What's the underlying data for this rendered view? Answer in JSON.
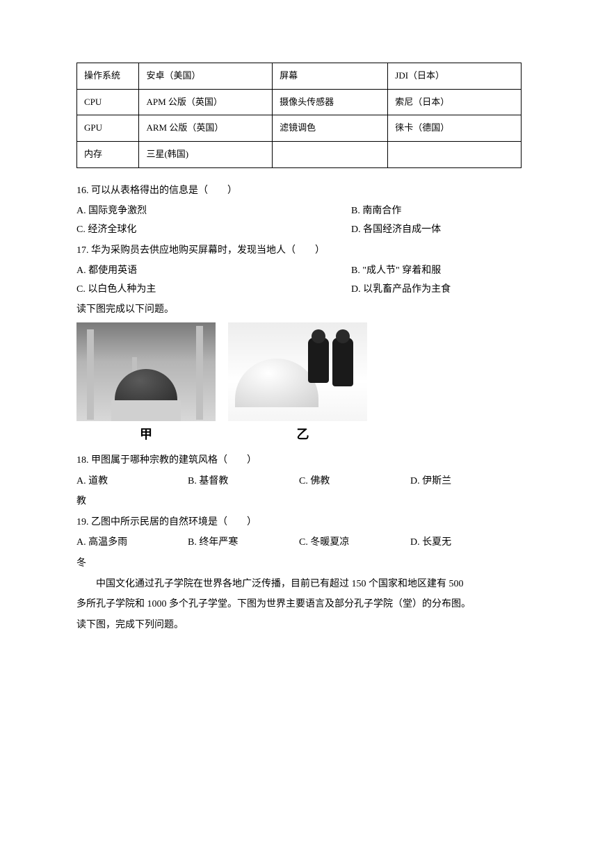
{
  "table": {
    "rows": [
      [
        "操作系统",
        "安卓（美国）",
        "屏幕",
        "JDI（日本）"
      ],
      [
        "CPU",
        "APM 公版（英国）",
        "摄像头传感器",
        "索尼（日本）"
      ],
      [
        "GPU",
        "ARM 公版（英国）",
        "滤镜调色",
        "徕卡（德国）"
      ],
      [
        "内存",
        "三星(韩国)",
        "",
        ""
      ]
    ]
  },
  "q16": {
    "stem": "16. 可以从表格得出的信息是（　　）",
    "A": "A.  国际竞争激烈",
    "B": "B.  南南合作",
    "C": "C.  经济全球化",
    "D": "D.  各国经济自成一体"
  },
  "q17": {
    "stem": "17. 华为采购员去供应地购买屏幕时，发现当地人（　　）",
    "A": "A.  都使用英语",
    "B": "B. \"成人节\" 穿着和服",
    "C": "C.  以白色人种为主",
    "D": "D.  以乳畜产品作为主食"
  },
  "image_intro": "读下图完成以下问题。",
  "image_labels": {
    "left": "甲",
    "right": "乙"
  },
  "q18": {
    "stem": "18. 甲图属于哪种宗教的建筑风格（　　）",
    "A": "A.  道教",
    "B": "B.  基督教",
    "C": "C.  佛教",
    "D": "D.  伊斯兰",
    "trail": "教"
  },
  "q19": {
    "stem": "19. 乙图中所示民居的自然环境是（　　）",
    "A": "A.  高温多雨",
    "B": "B.  终年严寒",
    "C": "C.  冬暖夏凉",
    "D": "D.  长夏无",
    "trail": "冬"
  },
  "passage": {
    "line1": "中国文化通过孔子学院在世界各地广泛传播，目前已有超过 150 个国家和地区建有 500",
    "line2": "多所孔子学院和 1000 多个孔子学堂。下图为世界主要语言及部分孔子学院（堂）的分布图。",
    "line3": "读下图，完成下列问题。"
  },
  "colors": {
    "text": "#000000",
    "background": "#ffffff",
    "border": "#000000"
  }
}
